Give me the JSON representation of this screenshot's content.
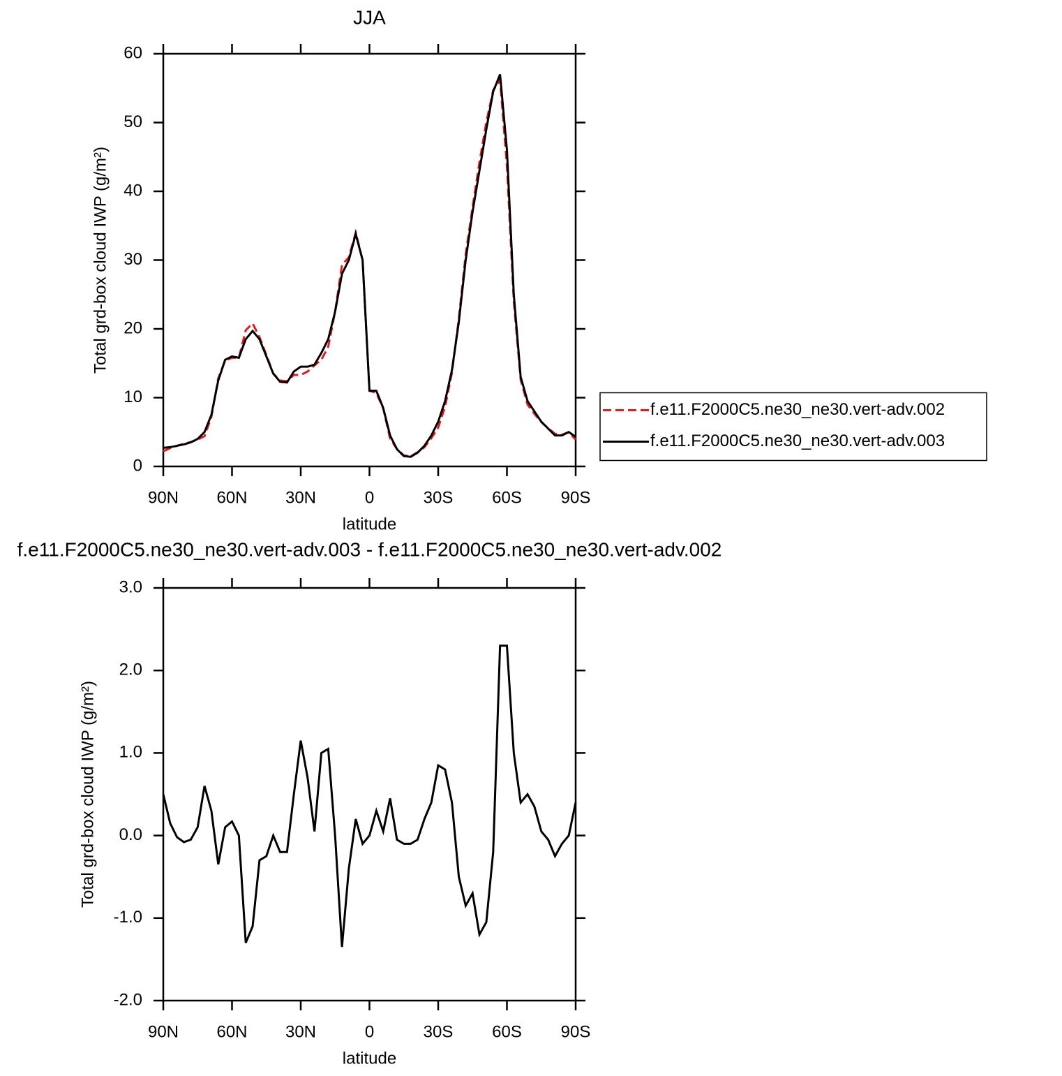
{
  "chart_data": [
    {
      "type": "line",
      "title": "JJA",
      "xlabel": "latitude",
      "ylabel": "Total grd-box cloud IWP (g/m²)",
      "x": [
        90,
        87,
        84,
        81,
        78,
        75,
        72,
        69,
        66,
        63,
        60,
        57,
        54,
        51,
        48,
        45,
        42,
        39,
        36,
        33,
        30,
        27,
        24,
        21,
        18,
        15,
        12,
        9,
        6,
        3,
        0,
        -3,
        -6,
        -9,
        -12,
        -15,
        -18,
        -21,
        -24,
        -27,
        -30,
        -33,
        -36,
        -39,
        -42,
        -45,
        -48,
        -51,
        -54,
        -57,
        -60,
        -63,
        -66,
        -69,
        -72,
        -75,
        -78,
        -81,
        -84,
        -87,
        -90
      ],
      "xlim": [
        90,
        -90
      ],
      "xticks": [
        {
          "value": 90,
          "label": "90N"
        },
        {
          "value": 60,
          "label": "60N"
        },
        {
          "value": 30,
          "label": "30N"
        },
        0,
        {
          "value": -30,
          "label": "30S"
        },
        {
          "value": -60,
          "label": "60S"
        },
        {
          "value": -90,
          "label": "90S"
        }
      ],
      "ylim": [
        0,
        60
      ],
      "yticks": [
        0,
        10,
        20,
        30,
        40,
        50,
        60
      ],
      "legend": "right",
      "series": [
        {
          "name": "f.e11.F2000C5.ne30_ne30.vert-adv.002",
          "color": "#e41a1c",
          "line_style": "dashed",
          "values": [
            2.2,
            2.65,
            3.0,
            3.3,
            3.55,
            3.9,
            4.4,
            7.2,
            12.8,
            15.4,
            15.8,
            15.8,
            19.8,
            20.8,
            18.8,
            16.2,
            13.5,
            12.5,
            12.4,
            13.3,
            13.3,
            13.8,
            14.7,
            15.5,
            17.4,
            22.5,
            29.3,
            30.4,
            34.0,
            30.0,
            11.0,
            10.7,
            8.45,
            4.05,
            2.55,
            1.6,
            1.5,
            2.05,
            2.8,
            4.1,
            5.65,
            8.7,
            13.6,
            21.5,
            30.85,
            37.7,
            44.2,
            50.05,
            54.7,
            56.2,
            43.7,
            24.0,
            12.6,
            9.0,
            7.65,
            6.45,
            5.55,
            4.75,
            4.6,
            5.0,
            3.9
          ]
        },
        {
          "name": "f.e11.F2000C5.ne30_ne30.vert-adv.003",
          "color": "#000000",
          "line_style": "solid",
          "values": [
            2.7,
            2.8,
            3.0,
            3.2,
            3.5,
            4.0,
            5.0,
            7.5,
            12.5,
            15.5,
            16.0,
            15.8,
            18.5,
            19.7,
            18.5,
            16.0,
            13.5,
            12.3,
            12.2,
            13.8,
            14.5,
            14.5,
            14.8,
            16.5,
            18.5,
            22.5,
            28.0,
            30.0,
            33.8,
            30.0,
            11.0,
            11.0,
            8.5,
            4.5,
            2.5,
            1.5,
            1.4,
            2.0,
            3.0,
            4.5,
            6.5,
            9.5,
            14.0,
            21.0,
            30.0,
            37.0,
            43.0,
            49.0,
            54.5,
            57.0,
            46.0,
            25.0,
            13.0,
            9.5,
            8.0,
            6.5,
            5.5,
            4.5,
            4.5,
            5.0,
            4.3
          ]
        }
      ]
    },
    {
      "type": "line",
      "title": "f.e11.F2000C5.ne30_ne30.vert-adv.003 - f.e11.F2000C5.ne30_ne30.vert-adv.002",
      "xlabel": "latitude",
      "ylabel": "Total grd-box cloud IWP (g/m²)",
      "x": [
        90,
        87,
        84,
        81,
        78,
        75,
        72,
        69,
        66,
        63,
        60,
        57,
        54,
        51,
        48,
        45,
        42,
        39,
        36,
        33,
        30,
        27,
        24,
        21,
        18,
        15,
        12,
        9,
        6,
        3,
        0,
        -3,
        -6,
        -9,
        -12,
        -15,
        -18,
        -21,
        -24,
        -27,
        -30,
        -33,
        -36,
        -39,
        -42,
        -45,
        -48,
        -51,
        -54,
        -57,
        -60,
        -63,
        -66,
        -69,
        -72,
        -75,
        -78,
        -81,
        -84,
        -87,
        -90
      ],
      "xlim": [
        90,
        -90
      ],
      "xticks": [
        {
          "value": 90,
          "label": "90N"
        },
        {
          "value": 60,
          "label": "60N"
        },
        {
          "value": 30,
          "label": "30N"
        },
        0,
        {
          "value": -30,
          "label": "30S"
        },
        {
          "value": -60,
          "label": "60S"
        },
        {
          "value": -90,
          "label": "90S"
        }
      ],
      "ylim": [
        -2,
        3
      ],
      "yticks": [
        {
          "value": -2,
          "label": "-2.0"
        },
        {
          "value": -1,
          "label": "-1.0"
        },
        {
          "value": 0,
          "label": "0.0"
        },
        {
          "value": 1,
          "label": "1.0"
        },
        {
          "value": 2,
          "label": "2.0"
        },
        {
          "value": 3,
          "label": "3.0"
        }
      ],
      "series": [
        {
          "color": "#000000",
          "line_style": "solid",
          "values": [
            0.5,
            0.15,
            -0.02,
            -0.08,
            -0.05,
            0.1,
            0.6,
            0.3,
            -0.35,
            0.1,
            0.17,
            0.0,
            -1.3,
            -1.1,
            -0.3,
            -0.25,
            0.0,
            -0.2,
            -0.2,
            0.5,
            1.15,
            0.7,
            0.05,
            1.0,
            1.05,
            0.0,
            -1.35,
            -0.4,
            0.2,
            -0.1,
            0.0,
            0.3,
            0.05,
            0.45,
            -0.05,
            -0.1,
            -0.1,
            -0.05,
            0.2,
            0.4,
            0.85,
            0.8,
            0.4,
            -0.5,
            -0.85,
            -0.7,
            -1.2,
            -1.05,
            -0.2,
            2.3,
            2.3,
            1.0,
            0.4,
            0.5,
            0.35,
            0.05,
            -0.05,
            -0.25,
            -0.1,
            0.0,
            0.4
          ]
        }
      ]
    }
  ]
}
